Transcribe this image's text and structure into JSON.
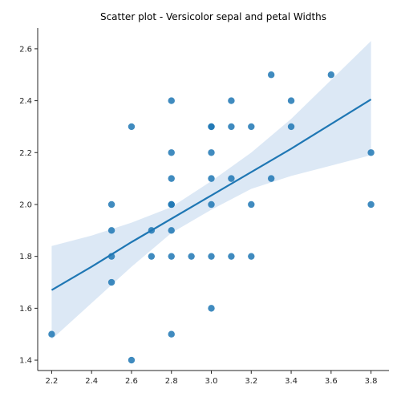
{
  "chart_data": {
    "type": "scatter",
    "title": "Scatter plot - Versicolor sepal and petal Widths",
    "xlabel": "",
    "ylabel": "",
    "xlim": [
      2.13,
      3.89
    ],
    "ylim": [
      1.36,
      2.68
    ],
    "x_ticks": [
      2.2,
      2.4,
      2.6,
      2.8,
      3.0,
      3.2,
      3.4,
      3.6,
      3.8
    ],
    "x_tick_labels": [
      "2.2",
      "2.4",
      "2.6",
      "2.8",
      "3.0",
      "3.2",
      "3.4",
      "3.6",
      "3.8"
    ],
    "y_ticks": [
      1.4,
      1.6,
      1.8,
      2.0,
      2.2,
      2.4,
      2.6
    ],
    "y_tick_labels": [
      "1.4",
      "1.6",
      "1.8",
      "2.0",
      "2.2",
      "2.4",
      "2.6"
    ],
    "grid": false,
    "point_color": "#1f77b4",
    "band_color": "#c5d9ee",
    "series": [
      {
        "x": [
          2.2,
          2.5,
          2.5,
          2.5,
          2.5,
          2.6,
          2.6,
          2.7,
          2.7,
          2.8,
          2.8,
          2.8,
          2.8,
          2.8,
          2.8,
          2.8,
          2.8,
          2.9,
          3.0,
          3.0,
          3.0,
          3.0,
          3.0,
          3.0,
          3.0,
          3.1,
          3.1,
          3.1,
          3.1,
          3.2,
          3.2,
          3.2,
          3.3,
          3.3,
          3.4,
          3.4,
          3.6,
          3.8,
          3.8
        ],
        "y": [
          1.5,
          2.0,
          1.9,
          1.8,
          1.7,
          2.3,
          1.4,
          1.9,
          1.8,
          2.4,
          2.2,
          2.1,
          2.0,
          1.9,
          1.8,
          1.5,
          2.0,
          1.8,
          2.3,
          2.2,
          2.1,
          2.0,
          1.8,
          1.6,
          2.3,
          2.4,
          2.3,
          2.1,
          1.8,
          2.3,
          2.0,
          1.8,
          2.5,
          2.1,
          2.4,
          2.3,
          2.5,
          2.2,
          2.0
        ]
      }
    ],
    "regression": {
      "x": [
        2.2,
        2.4,
        2.6,
        2.8,
        3.0,
        3.2,
        3.4,
        3.6,
        3.8
      ],
      "y": [
        1.67,
        1.76,
        1.855,
        1.945,
        2.035,
        2.125,
        2.215,
        2.31,
        2.405
      ],
      "ci_upper": [
        1.84,
        1.88,
        1.93,
        1.99,
        2.09,
        2.2,
        2.33,
        2.48,
        2.63
      ],
      "ci_lower": [
        1.48,
        1.62,
        1.76,
        1.89,
        1.98,
        2.06,
        2.11,
        2.15,
        2.19
      ]
    }
  }
}
